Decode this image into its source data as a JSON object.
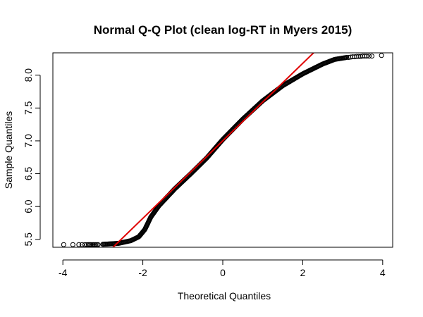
{
  "chart_data": {
    "type": "scatter",
    "title": "Normal Q-Q Plot (clean log-RT in Myers 2015)",
    "xlabel": "Theoretical Quantiles",
    "ylabel": "Sample Quantiles",
    "xlim": [
      -4.25,
      4.25
    ],
    "ylim": [
      5.38,
      8.34
    ],
    "x_ticks": [
      -4,
      -2,
      0,
      2,
      4
    ],
    "x_tick_labels": [
      "-4",
      "-2",
      "0",
      "2",
      "4"
    ],
    "y_ticks": [
      5.5,
      6.0,
      6.5,
      7.0,
      7.5,
      8.0
    ],
    "y_tick_labels": [
      "5.5",
      "6.0",
      "6.5",
      "7.0",
      "7.5",
      "8.0"
    ],
    "grid": false,
    "point_marker": "open-circle",
    "point_color": "#000000",
    "reference_line": {
      "color": "#e00000",
      "slope": 0.59,
      "intercept": 7.0
    },
    "curve_keypoints": {
      "x": [
        -3.0,
        -2.6,
        -2.3,
        -2.1,
        -1.95,
        -1.8,
        -1.6,
        -1.2,
        -0.8,
        -0.4,
        0.0,
        0.5,
        1.0,
        1.5,
        2.0,
        2.5,
        2.8,
        3.1
      ],
      "y": [
        5.425,
        5.44,
        5.48,
        5.54,
        5.65,
        5.84,
        6.01,
        6.27,
        6.5,
        6.74,
        7.02,
        7.33,
        7.61,
        7.84,
        8.02,
        8.17,
        8.24,
        8.27
      ]
    },
    "tail_points": {
      "left": {
        "x": [
          -3.98,
          -3.75,
          -3.6,
          -3.52,
          -3.45,
          -3.4,
          -3.36,
          -3.33,
          -3.3,
          -3.27,
          -3.24,
          -3.21,
          -3.18,
          -3.15,
          -3.12
        ],
        "y": [
          5.42,
          5.42,
          5.42,
          5.42,
          5.42,
          5.42,
          5.42,
          5.42,
          5.42,
          5.42,
          5.42,
          5.42,
          5.42,
          5.42,
          5.42
        ]
      },
      "right": {
        "x": [
          3.15,
          3.2,
          3.25,
          3.3,
          3.35,
          3.4,
          3.45,
          3.5,
          3.55,
          3.6,
          3.66,
          3.73,
          3.97
        ],
        "y": [
          8.27,
          8.275,
          8.28,
          8.28,
          8.285,
          8.285,
          8.285,
          8.29,
          8.29,
          8.29,
          8.29,
          8.29,
          8.3
        ]
      }
    }
  }
}
